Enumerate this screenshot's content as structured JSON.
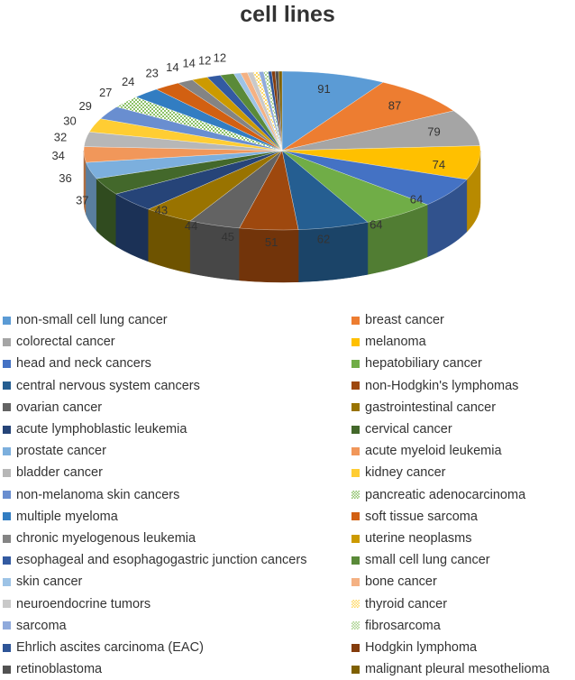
{
  "chart_data": {
    "type": "pie",
    "title": "cell lines",
    "legend_position": "bottom",
    "slices": [
      {
        "name": "non-small cell lung cancer",
        "value": 91,
        "color": "#5B9BD5"
      },
      {
        "name": "breast cancer",
        "value": 87,
        "color": "#ED7D31"
      },
      {
        "name": "colorectal cancer",
        "value": 79,
        "color": "#A5A5A5"
      },
      {
        "name": "melanoma",
        "value": 74,
        "color": "#FFC000"
      },
      {
        "name": "head and neck cancers",
        "value": 64,
        "color": "#4472C4"
      },
      {
        "name": "hepatobiliary cancer",
        "value": 64,
        "color": "#70AD47"
      },
      {
        "name": "central nervous system cancers",
        "value": 62,
        "color": "#255E91"
      },
      {
        "name": "non-Hodgkin's lymphomas",
        "value": 51,
        "color": "#9E480E"
      },
      {
        "name": "ovarian cancer",
        "value": 45,
        "color": "#636363"
      },
      {
        "name": "gastrointestinal cancer",
        "value": 44,
        "color": "#997300"
      },
      {
        "name": "acute lymphoblastic leukemia",
        "value": 43,
        "color": "#264478"
      },
      {
        "name": "cervical cancer",
        "value": 37,
        "color": "#43682B"
      },
      {
        "name": "prostate cancer",
        "value": 36,
        "color": "#7CAFDD"
      },
      {
        "name": "acute myeloid leukemia",
        "value": 34,
        "color": "#F1975A"
      },
      {
        "name": "bladder cancer",
        "value": 32,
        "color": "#B7B7B7"
      },
      {
        "name": "kidney cancer",
        "value": 30,
        "color": "#FFCD33"
      },
      {
        "name": "non-melanoma skin cancers",
        "value": 29,
        "color": "#698ED0"
      },
      {
        "name": "pancreatic adenocarcinoma",
        "value": 27,
        "color": "#8CC168",
        "pattern": true
      },
      {
        "name": "multiple myeloma",
        "value": 24,
        "color": "#327DC2"
      },
      {
        "name": "soft tissue sarcoma",
        "value": 23,
        "color": "#D26012"
      },
      {
        "name": "chronic myelogenous leukemia",
        "value": 14,
        "color": "#848484"
      },
      {
        "name": "uterine neoplasms",
        "value": 14,
        "color": "#CC9A00"
      },
      {
        "name": "esophageal and esophagogastric junction cancers",
        "value": 12,
        "color": "#335AA1"
      },
      {
        "name": "small cell lung cancer",
        "value": 12,
        "color": "#5A8A39"
      },
      {
        "name": "skin cancer",
        "value": 6,
        "color": "#9DC3E6"
      },
      {
        "name": "bone cancer",
        "value": 6,
        "color": "#F4B183"
      },
      {
        "name": "neuroendocrine tumors",
        "value": 5,
        "color": "#C9C9C9"
      },
      {
        "name": "thyroid cancer",
        "value": 5,
        "color": "#FFD966",
        "pattern": true
      },
      {
        "name": "sarcoma",
        "value": 4,
        "color": "#8FAADC"
      },
      {
        "name": "fibrosarcoma",
        "value": 4,
        "color": "#A9D18E",
        "pattern": true
      },
      {
        "name": "Ehrlich ascites carcinoma (EAC)",
        "value": 3,
        "color": "#2E5597"
      },
      {
        "name": "Hodgkin lymphoma",
        "value": 3,
        "color": "#843C0C"
      },
      {
        "name": "retinoblastoma",
        "value": 3,
        "color": "#525252"
      },
      {
        "name": "malignant pleural mesothelioma",
        "value": 3,
        "color": "#7F6000"
      }
    ],
    "data_labels": [
      91,
      87,
      79,
      74,
      64,
      64,
      62,
      51,
      45,
      44,
      43,
      37,
      36,
      34,
      32,
      30,
      29,
      27,
      24,
      23,
      14,
      14,
      12,
      12
    ]
  }
}
